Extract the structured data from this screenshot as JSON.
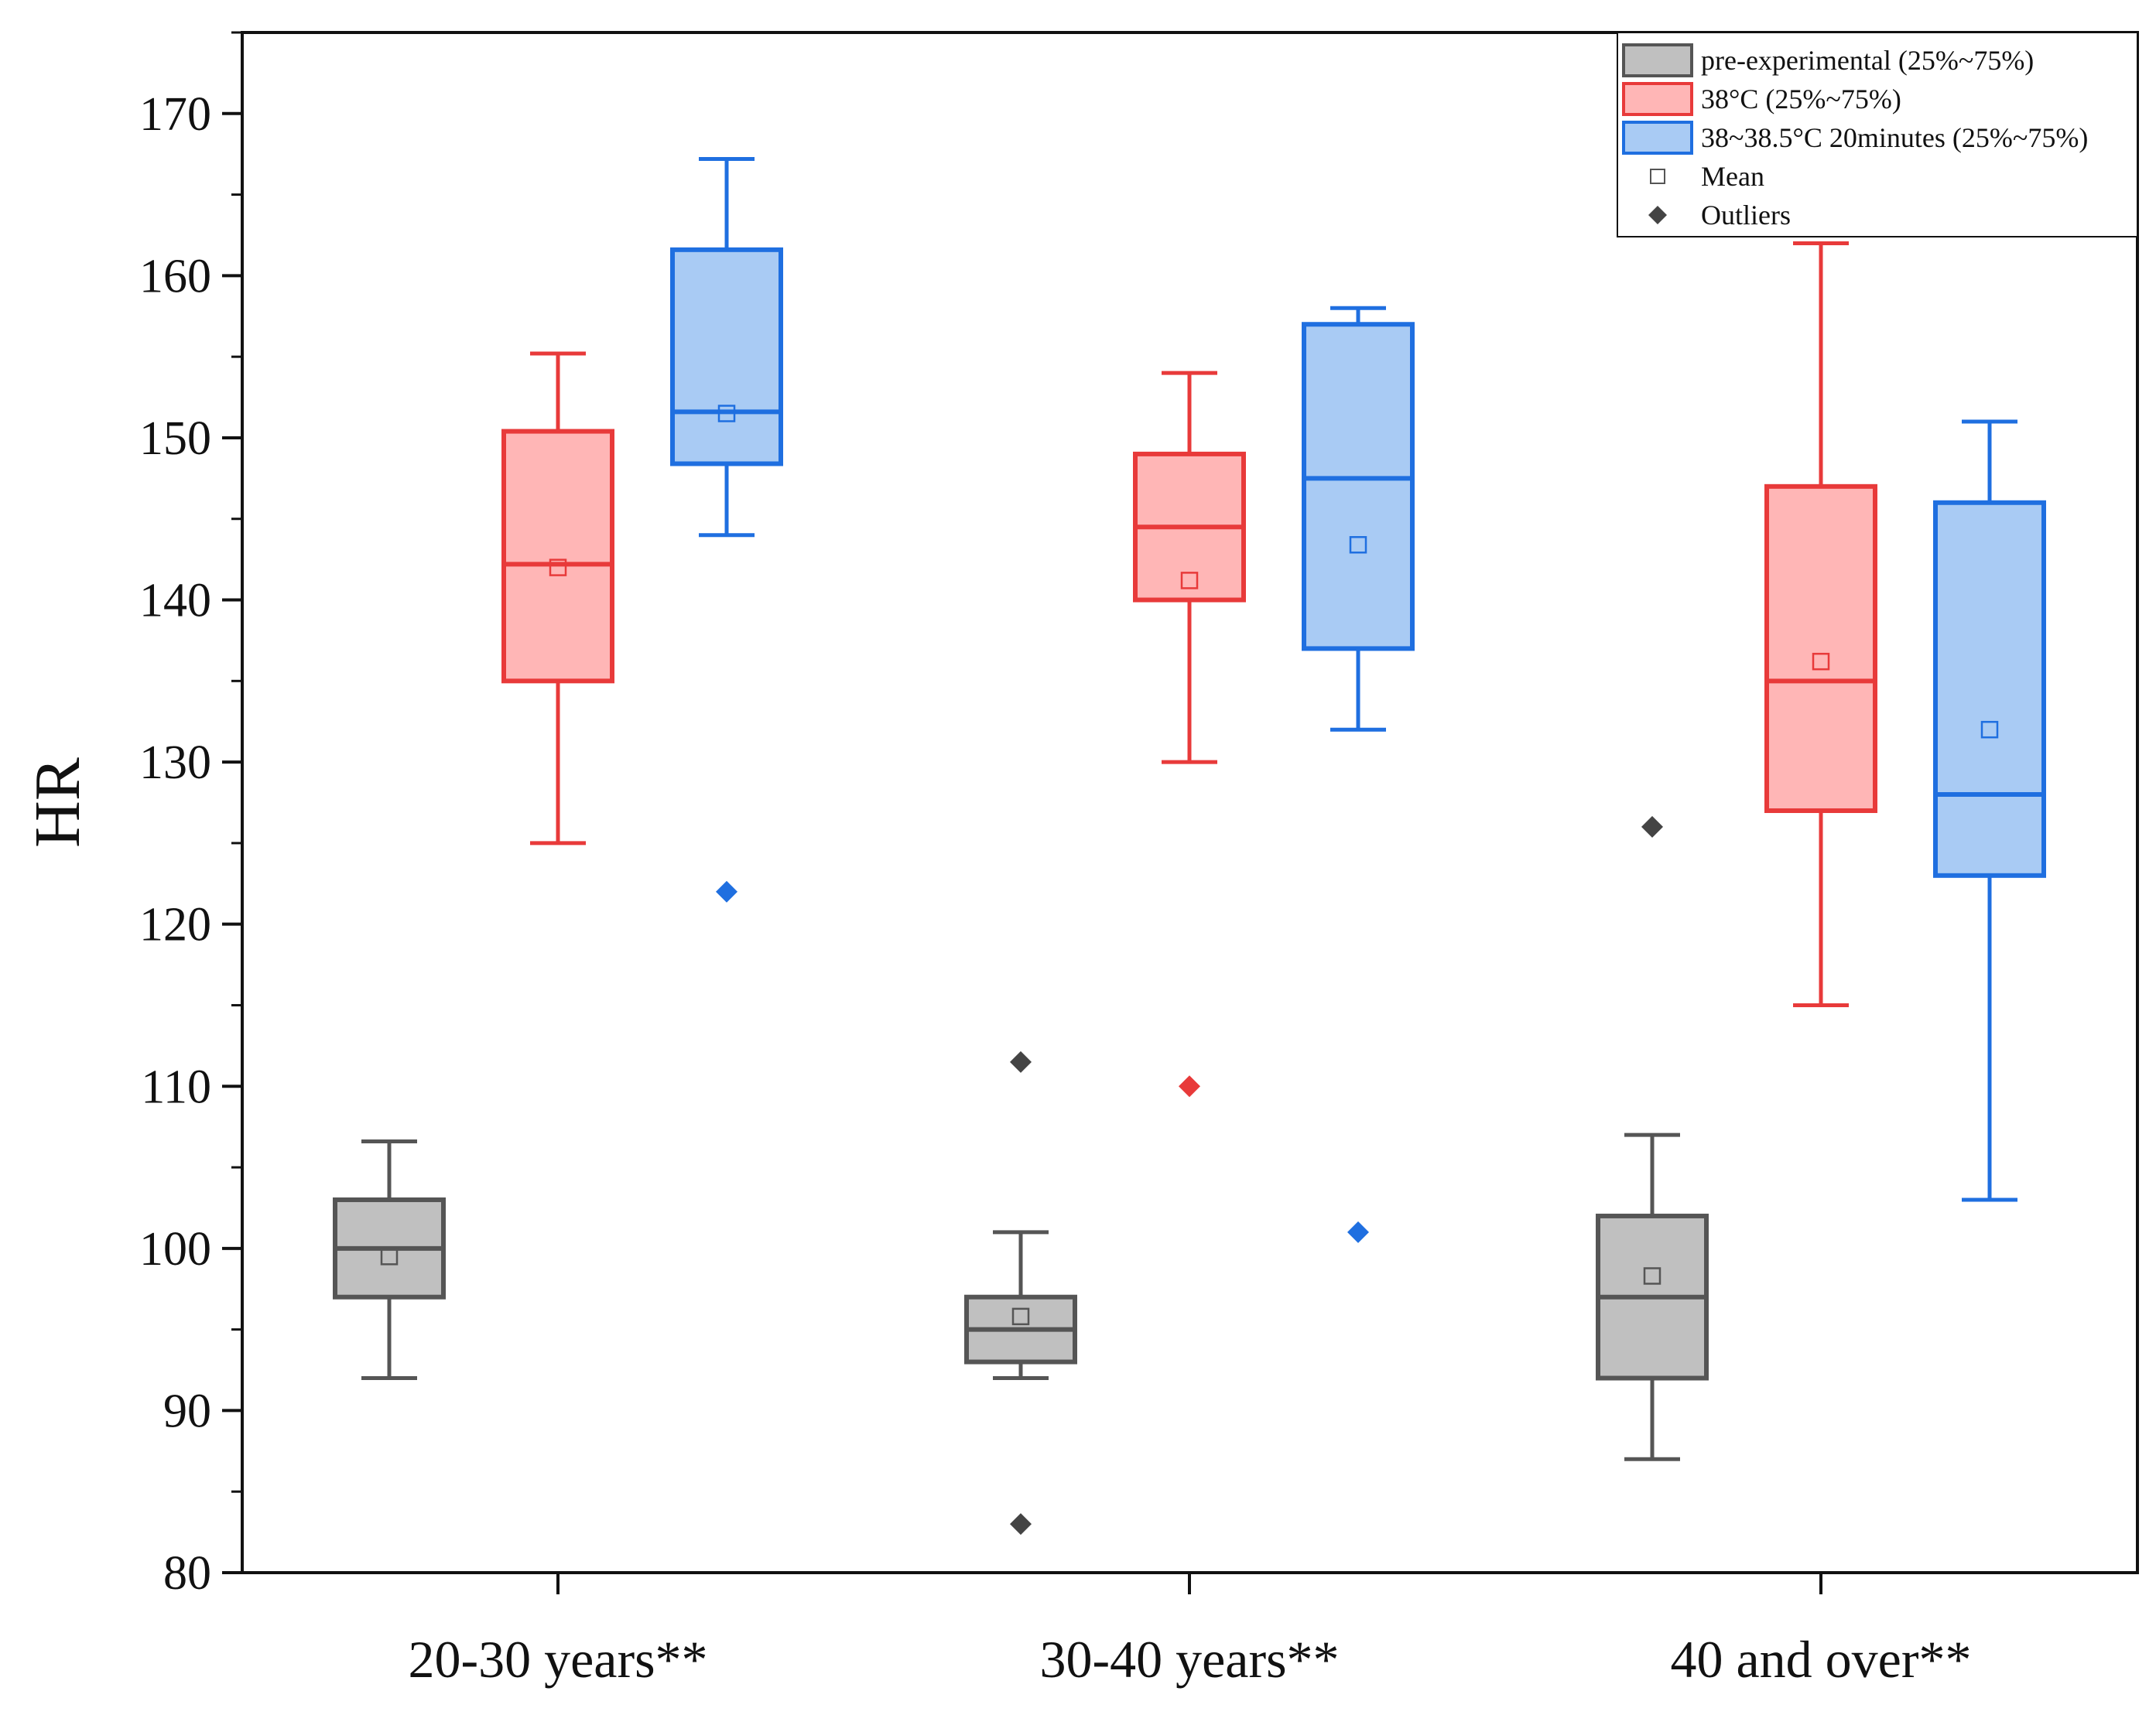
{
  "chart_data": {
    "type": "box",
    "ylabel": "HR",
    "xlabel": "",
    "ylim": [
      80,
      175
    ],
    "yticks": [
      80,
      90,
      100,
      110,
      120,
      130,
      140,
      150,
      160,
      170
    ],
    "yticklabels": [
      "80",
      "90",
      "100",
      "110",
      "120",
      "130",
      "140",
      "150",
      "160",
      "170"
    ],
    "categories": [
      "20-30 years**",
      "30-40 years**",
      "40 and over**"
    ],
    "colors": {
      "gray_stroke": "#555555",
      "gray_fill": "#c0c0c0",
      "gray_point": "#444444",
      "red_stroke": "#e83a3a",
      "red_fill": "#ffb6b6",
      "red_point": "#e83a3a",
      "blue_stroke": "#1f6fe0",
      "blue_fill": "#a9cbf4",
      "blue_point": "#1f6fe0"
    },
    "series": [
      {
        "name": "pre-experimental (25%~75%)",
        "color": "gray",
        "boxes": [
          {
            "whisker_low": 92,
            "q1": 97,
            "median": 100,
            "q3": 103,
            "whisker_high": 106.6,
            "mean": 99.5,
            "outliers": []
          },
          {
            "whisker_low": 92,
            "q1": 93,
            "median": 95,
            "q3": 97,
            "whisker_high": 101,
            "mean": 95.8,
            "outliers": [
              111.5,
              83
            ]
          },
          {
            "whisker_low": 87,
            "q1": 92,
            "median": 97,
            "q3": 102,
            "whisker_high": 107,
            "mean": 98.3,
            "outliers": [
              126
            ]
          }
        ]
      },
      {
        "name": "38°C (25%~75%)",
        "color": "red",
        "boxes": [
          {
            "whisker_low": 125,
            "q1": 135,
            "median": 142.2,
            "q3": 150.4,
            "whisker_high": 155.2,
            "mean": 142,
            "outliers": []
          },
          {
            "whisker_low": 130,
            "q1": 140,
            "median": 144.5,
            "q3": 149,
            "whisker_high": 154,
            "mean": 141.2,
            "outliers": [
              110
            ]
          },
          {
            "whisker_low": 115,
            "q1": 127,
            "median": 135,
            "q3": 147,
            "whisker_high": 162,
            "mean": 136.2,
            "outliers": []
          }
        ]
      },
      {
        "name": "38~38.5°C 20minutes (25%~75%)",
        "color": "blue",
        "boxes": [
          {
            "whisker_low": 144,
            "q1": 148.4,
            "median": 151.6,
            "q3": 161.6,
            "whisker_high": 167.2,
            "mean": 151.5,
            "outliers": [
              122
            ]
          },
          {
            "whisker_low": 132,
            "q1": 137,
            "median": 147.5,
            "q3": 157,
            "whisker_high": 158,
            "mean": 143.4,
            "outliers": [
              101
            ]
          },
          {
            "whisker_low": 103,
            "q1": 123,
            "median": 128,
            "q3": 146,
            "whisker_high": 151,
            "mean": 132,
            "outliers": []
          }
        ]
      }
    ],
    "legend": {
      "placement": "top-right",
      "items": [
        {
          "label": "pre-experimental (25%~75%)",
          "kind": "box",
          "color": "gray"
        },
        {
          "label": "38°C (25%~75%)",
          "kind": "box",
          "color": "red"
        },
        {
          "label": "38~38.5°C 20minutes (25%~75%)",
          "kind": "box",
          "color": "blue"
        },
        {
          "label": "Mean",
          "kind": "mean"
        },
        {
          "label": "Outliers",
          "kind": "outlier"
        }
      ]
    }
  }
}
